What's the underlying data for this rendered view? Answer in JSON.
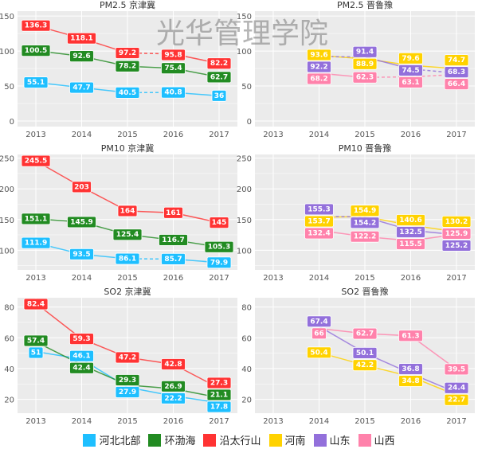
{
  "watermark": "光华管理学院",
  "colors": {
    "河北北部": "#1EBFFF",
    "环渤海": "#228B22",
    "沿太行山": "#FF3333",
    "河南": "#FFD200",
    "山东": "#9370DB",
    "山西": "#FF82AB"
  },
  "legend": [
    "河北北部",
    "环渤海",
    "沿太行山",
    "河南",
    "山东",
    "山西"
  ],
  "chart_data": [
    {
      "type": "line",
      "title": "PM2.5 京津冀",
      "categories": [
        2013,
        2014,
        2015,
        2016,
        2017
      ],
      "yticks": [
        0,
        50,
        100,
        150
      ],
      "ylim": [
        -8,
        157
      ],
      "grid": true,
      "series": [
        {
          "name": "河北北部",
          "x": [
            2013,
            2014,
            2015,
            2016,
            2017
          ],
          "values": [
            55.1,
            47.7,
            40.5,
            40.8,
            36
          ],
          "dashed_after": [
            2015
          ]
        },
        {
          "name": "环渤海",
          "x": [
            2013,
            2014,
            2015,
            2016,
            2017
          ],
          "values": [
            100.5,
            92.6,
            78.2,
            75.4,
            62.7
          ],
          "dashed_after": []
        },
        {
          "name": "沿太行山",
          "x": [
            2013,
            2014,
            2015,
            2016,
            2017
          ],
          "values": [
            136.3,
            118.1,
            97.2,
            95.8,
            82.2
          ],
          "dashed_after": [
            2015
          ]
        }
      ]
    },
    {
      "type": "line",
      "title": "PM2.5 晋鲁豫",
      "categories": [
        2013,
        2014,
        2015,
        2016,
        2017
      ],
      "yticks": [
        0,
        50,
        100,
        150
      ],
      "ylim": [
        -8,
        157
      ],
      "grid": true,
      "series": [
        {
          "name": "河南",
          "x": [
            2014,
            2015,
            2016,
            2017
          ],
          "values": [
            93.6,
            88.9,
            79.6,
            74.7
          ],
          "dashed_after": []
        },
        {
          "name": "山东",
          "x": [
            2014,
            2015,
            2016,
            2017
          ],
          "values": [
            92.2,
            91.4,
            74.5,
            68.3
          ],
          "dashed_after": [
            2014,
            2016
          ]
        },
        {
          "name": "山西",
          "x": [
            2014,
            2015,
            2016,
            2017
          ],
          "values": [
            68.2,
            62.3,
            63.1,
            66.4
          ],
          "dashed_after": [
            2015,
            2016
          ]
        }
      ]
    },
    {
      "type": "line",
      "title": "PM10 京津冀",
      "categories": [
        2013,
        2014,
        2015,
        2016,
        2017
      ],
      "yticks": [
        100,
        150,
        200,
        250
      ],
      "ylim": [
        68,
        256
      ],
      "grid": true,
      "series": [
        {
          "name": "河北北部",
          "x": [
            2013,
            2014,
            2015,
            2016,
            2017
          ],
          "values": [
            111.9,
            93.5,
            86.1,
            85.7,
            79.9
          ],
          "dashed_after": [
            2015
          ]
        },
        {
          "name": "环渤海",
          "x": [
            2013,
            2014,
            2015,
            2016,
            2017
          ],
          "values": [
            151.1,
            145.9,
            125.4,
            116.7,
            105.3
          ],
          "dashed_after": []
        },
        {
          "name": "沿太行山",
          "x": [
            2013,
            2014,
            2015,
            2016,
            2017
          ],
          "values": [
            245.5,
            203,
            164,
            161,
            145
          ],
          "dashed_after": []
        }
      ]
    },
    {
      "type": "line",
      "title": "PM10 晋鲁豫",
      "categories": [
        2013,
        2014,
        2015,
        2016,
        2017
      ],
      "yticks": [
        100,
        150,
        200,
        250
      ],
      "ylim": [
        68,
        256
      ],
      "grid": true,
      "series": [
        {
          "name": "河南",
          "x": [
            2014,
            2015,
            2016,
            2017
          ],
          "values": [
            153.7,
            154.9,
            140.6,
            130.2
          ],
          "dashed_after": []
        },
        {
          "name": "山东",
          "x": [
            2014,
            2015,
            2016,
            2017
          ],
          "values": [
            155.3,
            154.2,
            132.5,
            125.2
          ],
          "dashed_after": [
            2014
          ]
        },
        {
          "name": "山西",
          "x": [
            2014,
            2015,
            2016,
            2017
          ],
          "values": [
            132.4,
            122.2,
            115.5,
            125.9
          ],
          "dashed_after": []
        }
      ]
    },
    {
      "type": "line",
      "title": "SO2 京津冀",
      "categories": [
        2013,
        2014,
        2015,
        2016,
        2017
      ],
      "yticks": [
        20,
        40,
        60,
        80
      ],
      "ylim": [
        11,
        86
      ],
      "grid": true,
      "series": [
        {
          "name": "河北北部",
          "x": [
            2013,
            2014,
            2015,
            2016,
            2017
          ],
          "values": [
            51,
            46.1,
            27.9,
            22.2,
            17.8
          ],
          "dashed_after": []
        },
        {
          "name": "环渤海",
          "x": [
            2013,
            2014,
            2015,
            2016,
            2017
          ],
          "values": [
            57.4,
            42.4,
            29.3,
            26.9,
            21.1
          ],
          "dashed_after": []
        },
        {
          "name": "沿太行山",
          "x": [
            2013,
            2014,
            2015,
            2016,
            2017
          ],
          "values": [
            82.4,
            59.3,
            47.2,
            42.8,
            27.3
          ],
          "dashed_after": []
        }
      ]
    },
    {
      "type": "line",
      "title": "SO2 晋鲁豫",
      "categories": [
        2013,
        2014,
        2015,
        2016,
        2017
      ],
      "yticks": [
        20,
        40,
        60,
        80
      ],
      "ylim": [
        11,
        86
      ],
      "grid": true,
      "series": [
        {
          "name": "河南",
          "x": [
            2014,
            2015,
            2016,
            2017
          ],
          "values": [
            50.4,
            42.2,
            34.8,
            22.7
          ],
          "dashed_after": []
        },
        {
          "name": "山东",
          "x": [
            2014,
            2015,
            2016,
            2017
          ],
          "values": [
            67.4,
            50.1,
            36.8,
            24.4
          ],
          "dashed_after": []
        },
        {
          "name": "山西",
          "x": [
            2014,
            2015,
            2016,
            2017
          ],
          "values": [
            66,
            62.7,
            61.3,
            39.5
          ],
          "dashed_after": []
        }
      ]
    }
  ]
}
